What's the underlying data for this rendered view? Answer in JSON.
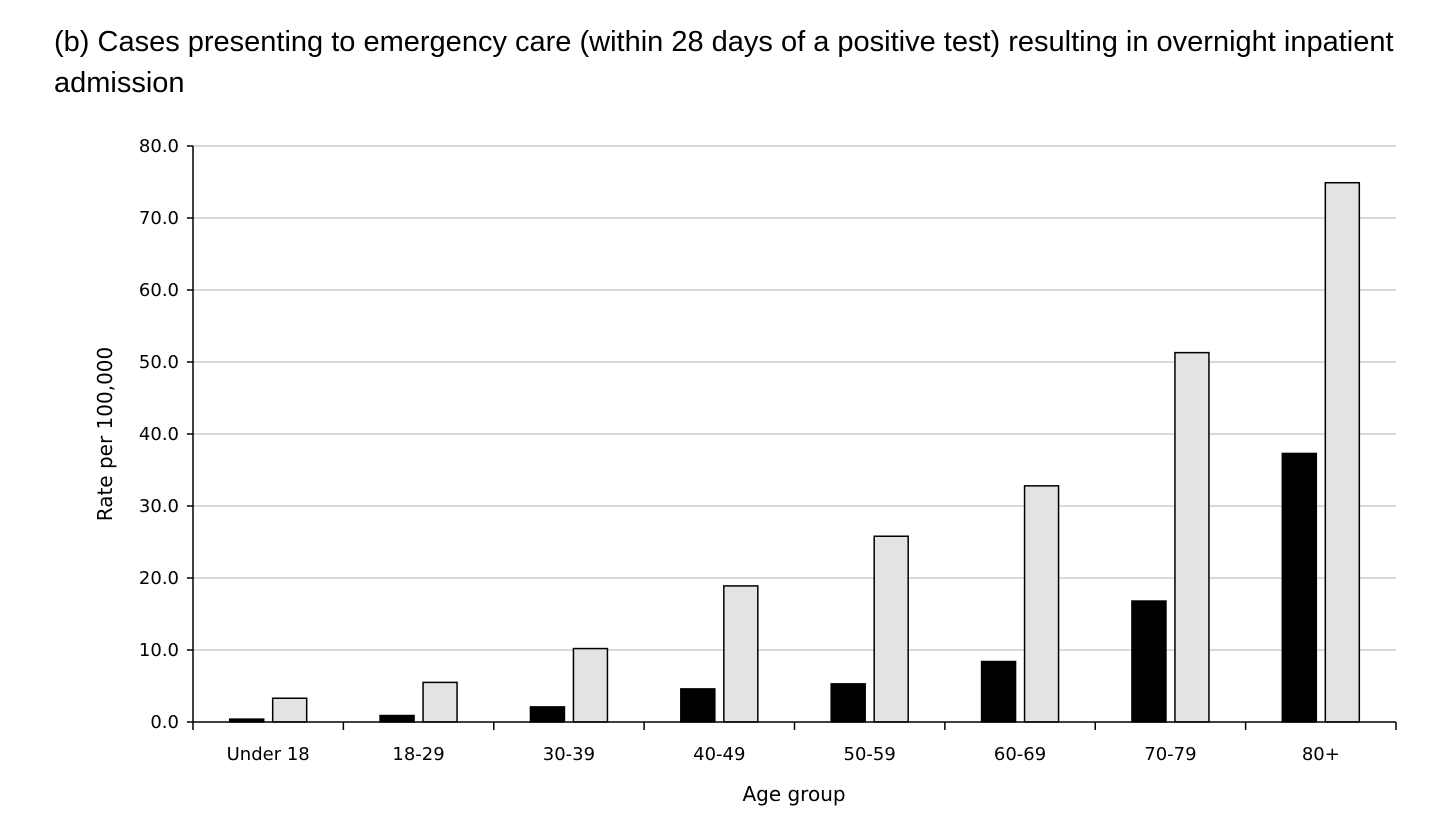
{
  "caption": "(b) Cases presenting to emergency care (within 28 days of a positive test) resulting in overnight inpatient admission",
  "colors": {
    "series_dark": "#000000",
    "series_light": "#e3e3e3",
    "grid": "#d9d9d9",
    "axis": "#000000"
  },
  "chart_data": {
    "type": "bar",
    "title": "",
    "xlabel": "Age group",
    "ylabel": "Rate per 100,000",
    "ylim": [
      0,
      80
    ],
    "yticks": [
      0,
      10,
      20,
      30,
      40,
      50,
      60,
      70,
      80
    ],
    "ytick_labels": [
      "0.0",
      "10.0",
      "20.0",
      "30.0",
      "40.0",
      "50.0",
      "60.0",
      "70.0",
      "80.0"
    ],
    "grid": true,
    "legend": "none",
    "categories": [
      "Under 18",
      "18-29",
      "30-39",
      "40-49",
      "50-59",
      "60-69",
      "70-79",
      "80+"
    ],
    "series": [
      {
        "values": [
          0.4,
          0.9,
          2.1,
          4.6,
          5.3,
          8.4,
          16.8,
          37.3
        ]
      },
      {
        "values": [
          3.3,
          5.5,
          10.2,
          18.9,
          25.8,
          32.8,
          51.3,
          74.9
        ]
      }
    ]
  }
}
